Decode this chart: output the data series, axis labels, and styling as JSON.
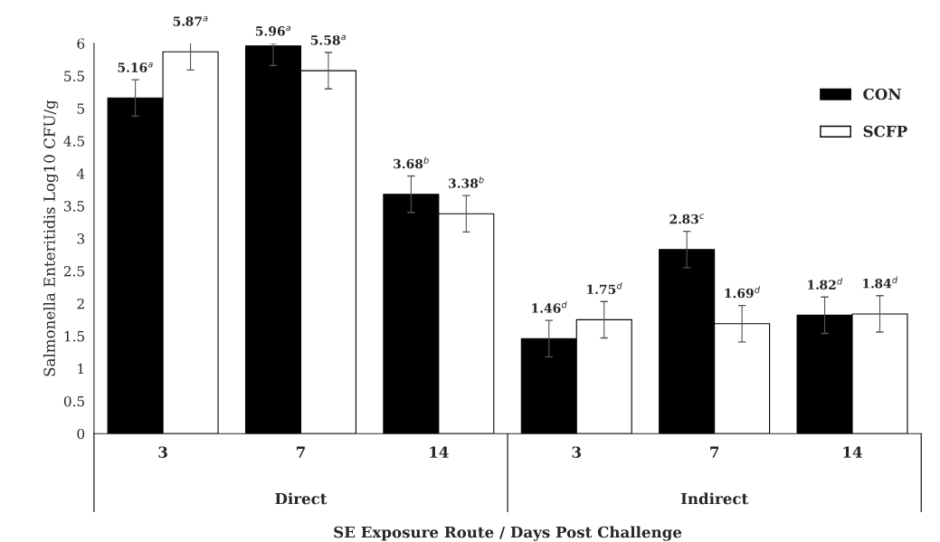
{
  "chart_data": {
    "type": "bar",
    "ylabel": "Salmonella Enteritidis Log10 CFU/g",
    "xlabel": "SE Exposure Route / Days Post Challenge",
    "categories": [
      "3",
      "7",
      "14",
      "3",
      "7",
      "14"
    ],
    "series": [
      {
        "name": "CON",
        "color": "#000000",
        "values": [
          5.16,
          5.96,
          3.68,
          1.46,
          2.83,
          1.82
        ],
        "errors": [
          0.28,
          [
            5.66,
            6.0
          ],
          0.28,
          0.28,
          0.28,
          0.28
        ],
        "value_labels": [
          "5.16$^{a}$",
          "5.96$^{a}$",
          "3.68$^{b}$",
          "1.46$^{d}$",
          "2.83$^{c}$",
          "1.82$^{d}$"
        ]
      },
      {
        "name": "SCFP",
        "color": "#ffffff",
        "values": [
          5.87,
          5.58,
          3.38,
          1.75,
          1.69,
          1.84
        ],
        "errors": [
          0.28,
          0.28,
          0.28,
          0.28,
          0.28,
          0.28
        ],
        "value_labels": [
          "5.87$^{a}$",
          "5.58$^{a}$",
          "3.38$^{b}$",
          "1.75$^{d}$",
          "1.69$^{d}$",
          "1.84$^{d}$"
        ]
      }
    ],
    "annotations": [
      "Direct",
      "Indirect"
    ],
    "ylim": [
      0,
      6
    ],
    "yticks": [
      0,
      0.5,
      1,
      1.5,
      2,
      2.5,
      3,
      3.5,
      4,
      4.5,
      5,
      5.5,
      6
    ],
    "grid": false,
    "legend": "top right"
  }
}
